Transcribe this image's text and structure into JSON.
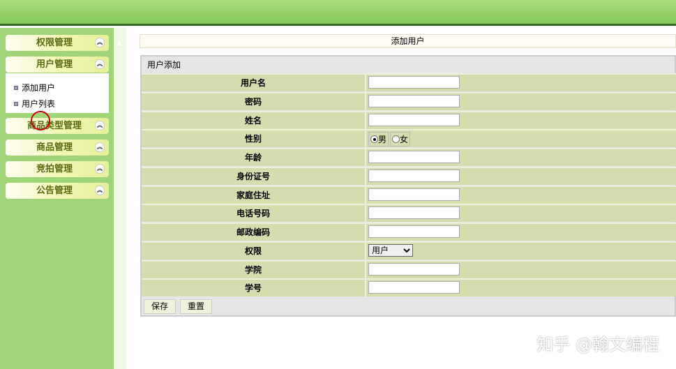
{
  "sidebar": {
    "panels": [
      {
        "label": "权限管理"
      },
      {
        "label": "用户管理"
      },
      {
        "label": "商品类型管理"
      },
      {
        "label": "商品管理"
      },
      {
        "label": "竞拍管理"
      },
      {
        "label": "公告管理"
      }
    ],
    "submenu": [
      {
        "label": "添加用户"
      },
      {
        "label": "用户列表"
      }
    ]
  },
  "page_title": "添加用户",
  "form": {
    "section": "用户添加",
    "fields": [
      {
        "label": "用户名",
        "value": ""
      },
      {
        "label": "密码",
        "value": ""
      },
      {
        "label": "姓名",
        "value": ""
      },
      {
        "label": "性别",
        "options": [
          "男",
          "女"
        ],
        "selected": "男"
      },
      {
        "label": "年龄",
        "value": ""
      },
      {
        "label": "身份证号",
        "value": ""
      },
      {
        "label": "家庭住址",
        "value": ""
      },
      {
        "label": "电话号码",
        "value": ""
      },
      {
        "label": "邮政编码",
        "value": ""
      },
      {
        "label": "权限",
        "selected": "用户"
      },
      {
        "label": "学院",
        "value": ""
      },
      {
        "label": "学号",
        "value": ""
      }
    ],
    "save": "保存",
    "reset": "重置"
  },
  "watermark": "知乎 @翰文编程"
}
